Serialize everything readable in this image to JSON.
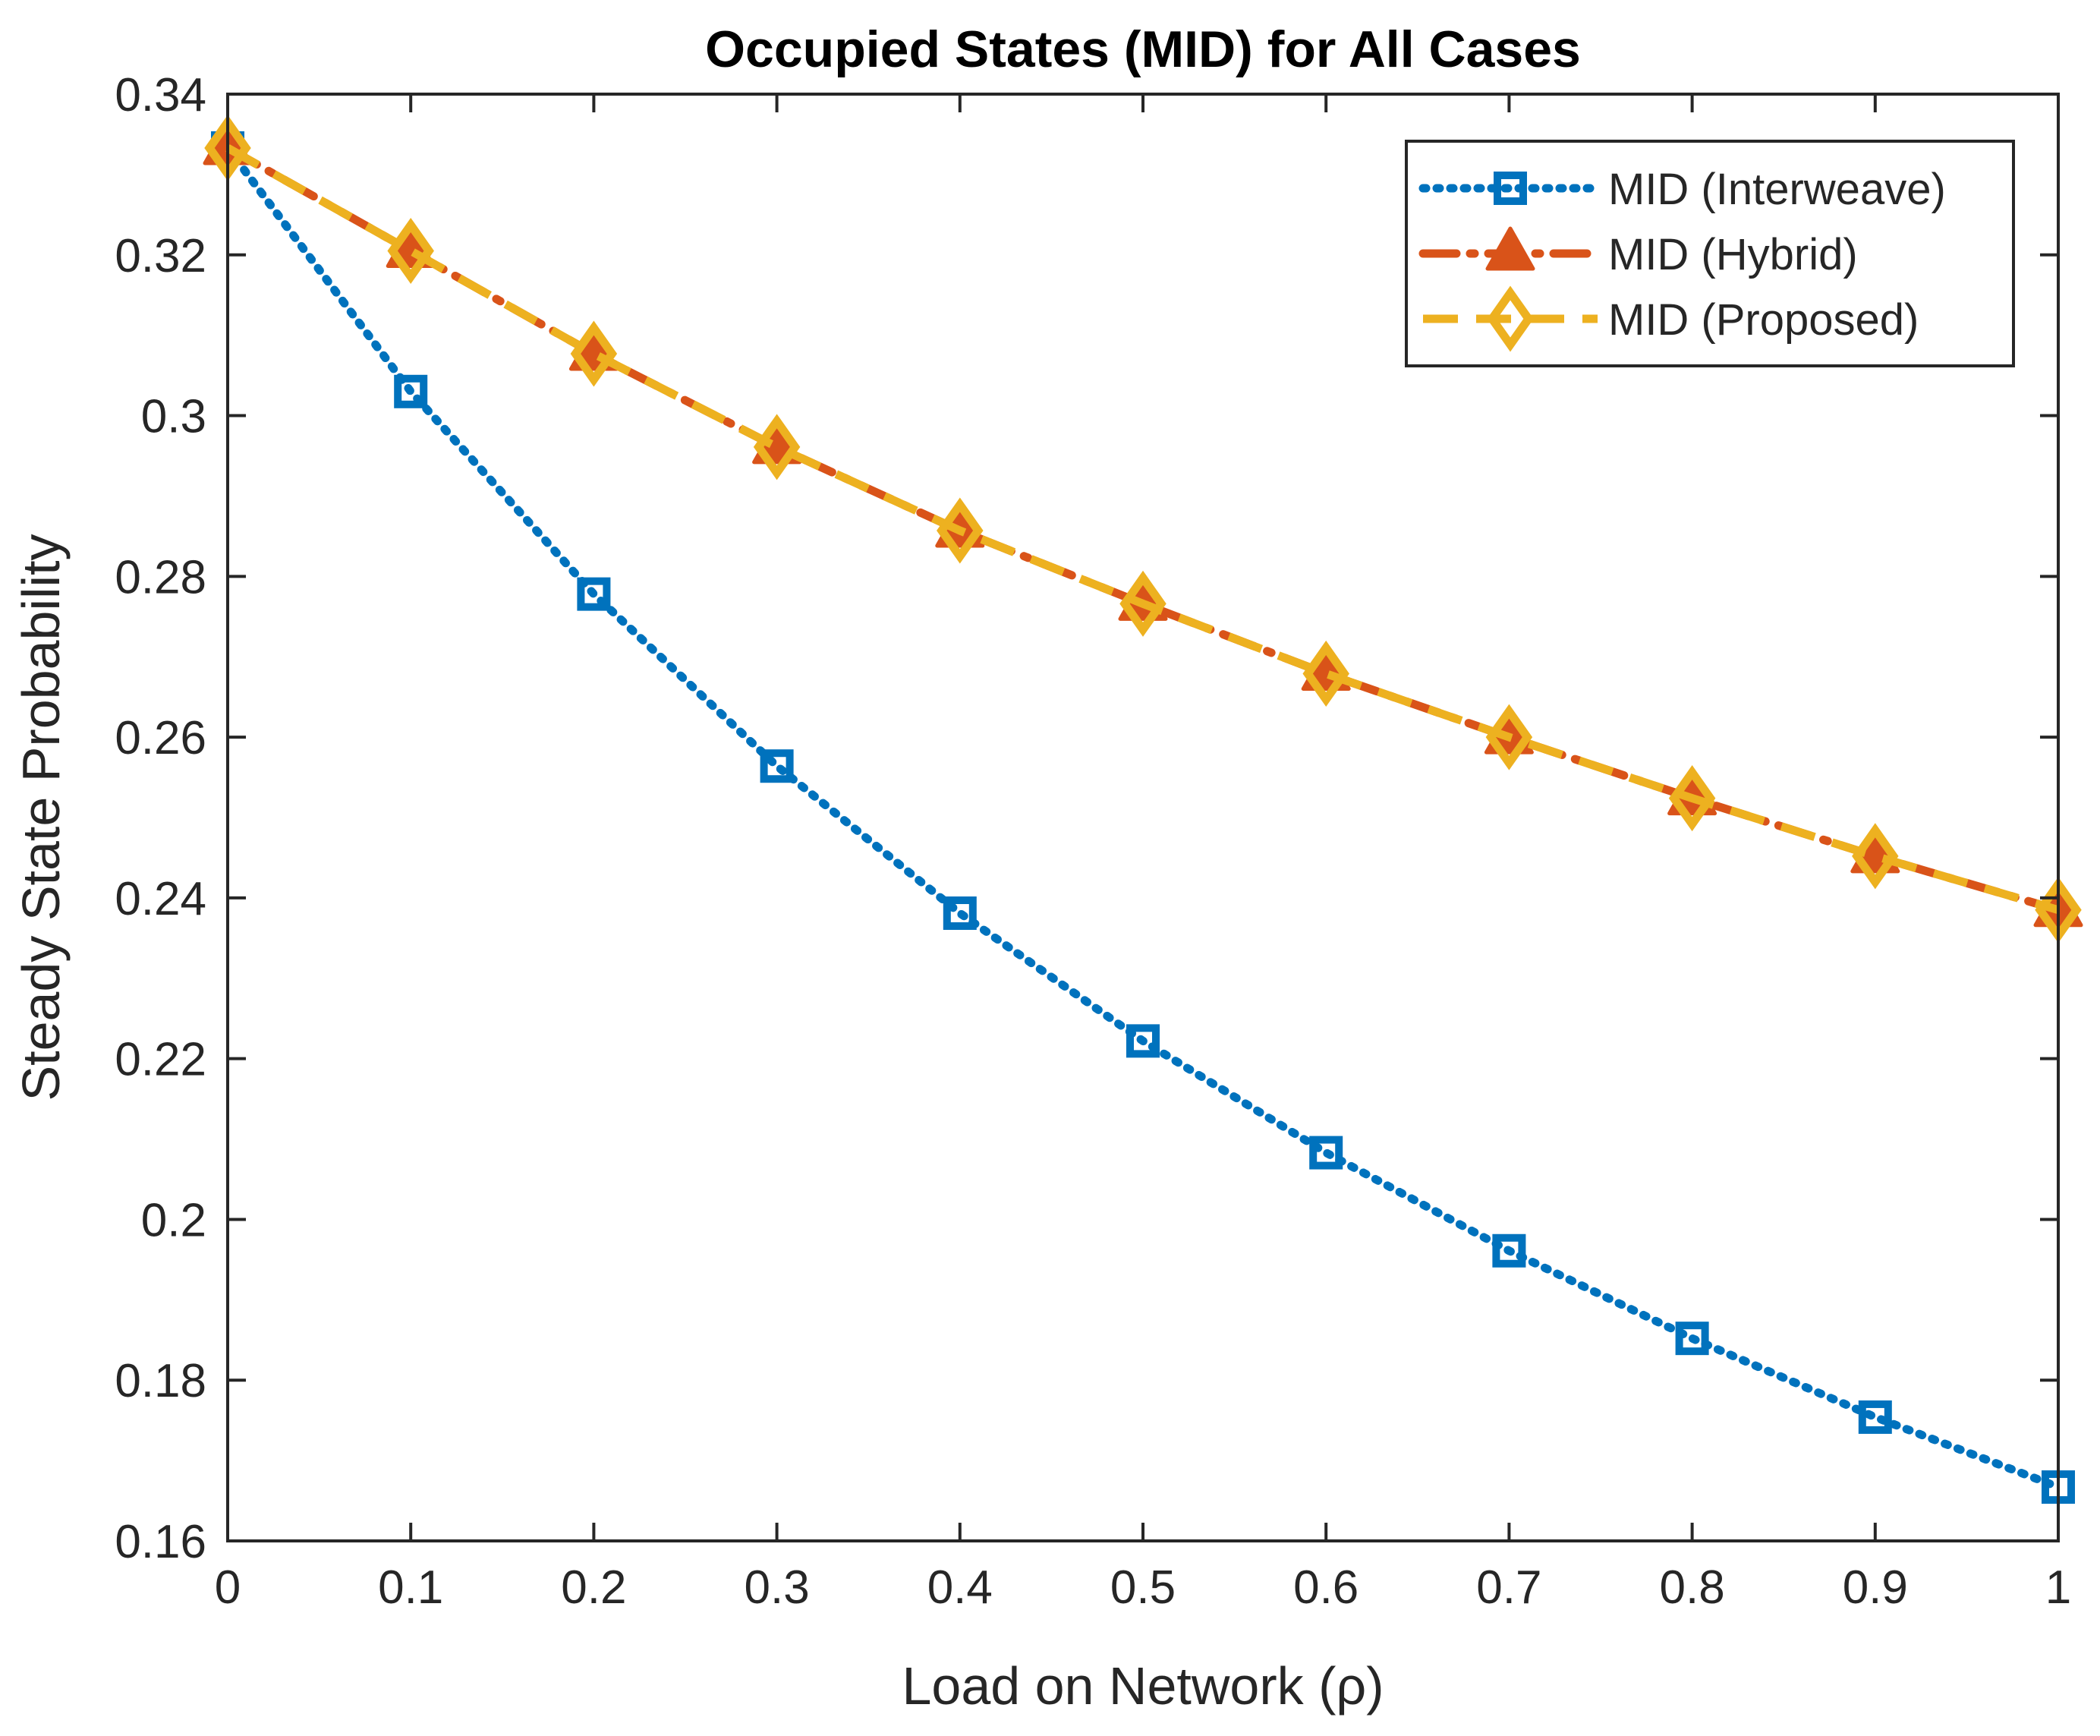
{
  "chart_data": {
    "type": "line",
    "title": "Occupied States (MID) for All Cases",
    "xlabel": "Load on Network (ρ)",
    "ylabel": "Steady State Probability",
    "xlim": [
      0,
      1
    ],
    "ylim": [
      0.16,
      0.34
    ],
    "x": [
      0,
      0.1,
      0.2,
      0.3,
      0.4,
      0.5,
      0.6,
      0.7,
      0.8,
      0.9,
      1
    ],
    "xticks": [
      0,
      0.1,
      0.2,
      0.3,
      0.4,
      0.5,
      0.6,
      0.7,
      0.8,
      0.9,
      1
    ],
    "xtick_labels": [
      "0",
      "0.1",
      "0.2",
      "0.3",
      "0.4",
      "0.5",
      "0.6",
      "0.7",
      "0.8",
      "0.9",
      "1"
    ],
    "yticks": [
      0.16,
      0.18,
      0.2,
      0.22,
      0.24,
      0.26,
      0.28,
      0.3,
      0.32,
      0.34
    ],
    "ytick_labels": [
      "0.16",
      "0.18",
      "0.2",
      "0.22",
      "0.24",
      "0.26",
      "0.28",
      "0.3",
      "0.32",
      "0.34"
    ],
    "grid": false,
    "legend_position": "top-right",
    "series": [
      {
        "name": "MID (Interweave)",
        "color": "#0072BD",
        "line_style": "dotted",
        "marker": "square",
        "values": [
          0.3333,
          0.303,
          0.2778,
          0.2564,
          0.2381,
          0.2222,
          0.2083,
          0.1961,
          0.1852,
          0.1754,
          0.1667
        ]
      },
      {
        "name": "MID (Hybrid)",
        "color": "#D95319",
        "line_style": "dash-dot",
        "marker": "triangle",
        "values": [
          0.3333,
          0.3205,
          0.3077,
          0.2961,
          0.2857,
          0.2766,
          0.2679,
          0.26,
          0.2524,
          0.2452,
          0.2385
        ]
      },
      {
        "name": "MID (Proposed)",
        "color": "#EDB120",
        "line_style": "dashed",
        "marker": "diamond",
        "values": [
          0.3333,
          0.3205,
          0.3077,
          0.2961,
          0.2857,
          0.2766,
          0.2679,
          0.26,
          0.2524,
          0.2452,
          0.2385
        ]
      }
    ]
  }
}
